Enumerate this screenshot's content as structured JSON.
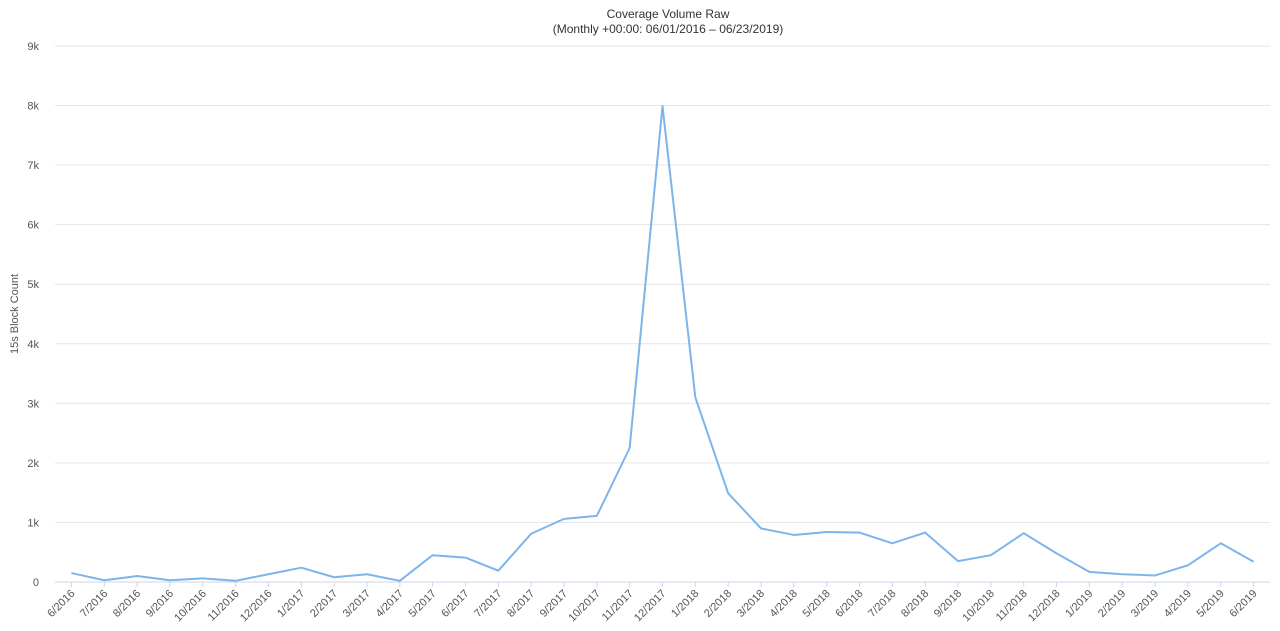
{
  "chart_data": {
    "type": "line",
    "title": "Coverage Volume Raw",
    "subtitle": "(Monthly +00:00: 06/01/2016 – 06/23/2019)",
    "y_label": "15s Block Count",
    "categories": [
      "6/2016",
      "7/2016",
      "8/2016",
      "9/2016",
      "10/2016",
      "11/2016",
      "12/2016",
      "1/2017",
      "2/2017",
      "3/2017",
      "4/2017",
      "5/2017",
      "6/2017",
      "7/2017",
      "8/2017",
      "9/2017",
      "10/2017",
      "11/2017",
      "12/2017",
      "1/2018",
      "2/2018",
      "3/2018",
      "4/2018",
      "5/2018",
      "6/2018",
      "7/2018",
      "8/2018",
      "9/2018",
      "10/2018",
      "11/2018",
      "12/2018",
      "1/2019",
      "2/2019",
      "3/2019",
      "4/2019",
      "5/2019",
      "6/2019"
    ],
    "series": [
      {
        "name": "15s Block Count",
        "color": "#7cb5ec",
        "values": [
          150,
          30,
          100,
          30,
          60,
          20,
          130,
          240,
          80,
          130,
          20,
          450,
          410,
          190,
          810,
          1060,
          1110,
          2250,
          7990,
          3100,
          1490,
          900,
          790,
          840,
          830,
          650,
          830,
          350,
          450,
          820,
          480,
          170,
          130,
          110,
          280,
          650,
          340
        ]
      }
    ],
    "ylim": [
      0,
      9000
    ],
    "yticks": [
      0,
      {
        "value": 1000,
        "label": "1k"
      },
      {
        "value": 2000,
        "label": "2k"
      },
      {
        "value": 3000,
        "label": "3k"
      },
      {
        "value": 4000,
        "label": "4k"
      },
      {
        "value": 5000,
        "label": "5k"
      },
      {
        "value": 6000,
        "label": "6k"
      },
      {
        "value": 7000,
        "label": "7k"
      },
      {
        "value": 8000,
        "label": "8k"
      },
      {
        "value": 9000,
        "label": "9k"
      }
    ],
    "grid": true
  }
}
